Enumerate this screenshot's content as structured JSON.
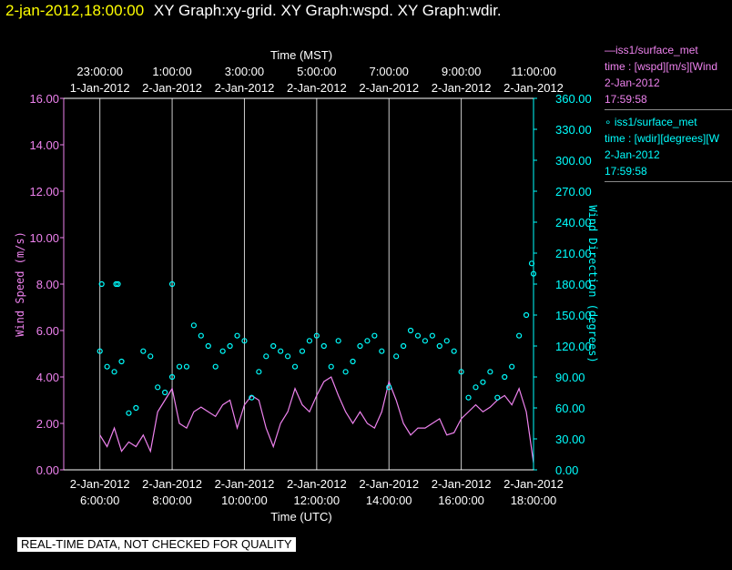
{
  "header": {
    "timestamp": "2-jan-2012,18:00:00",
    "graphs": "XY Graph:xy-grid.  XY Graph:wspd.  XY Graph:wdir."
  },
  "legend": [
    {
      "line1": "—iss1/surface_met",
      "line2": "time : [wspd][m/s][Wind",
      "line3": "2-Jan-2012",
      "line4": "17:59:58",
      "color": "#ee82ee"
    },
    {
      "line1": "∘ iss1/surface_met",
      "line2": "time : [wdir][degrees][W",
      "line3": "2-Jan-2012",
      "line4": "17:59:58",
      "color": "#00ffff"
    }
  ],
  "footer": "REAL-TIME DATA, NOT CHECKED FOR QUALITY",
  "chart_data": {
    "type": "line",
    "top_axis_title": "Time (MST)",
    "bottom_axis_title": "Time (UTC)",
    "ylabel_left": "Wind Speed (m/s)",
    "ylabel_right": "Wind Direction (degrees)",
    "x_range_utc_hours": [
      5.0,
      18.0
    ],
    "ylim_left": [
      0,
      16
    ],
    "ylim_right": [
      0,
      360
    ],
    "grid": true,
    "bottom_ticks": [
      {
        "hour": 6,
        "date": "2-Jan-2012",
        "time": "6:00:00"
      },
      {
        "hour": 8,
        "date": "2-Jan-2012",
        "time": "8:00:00"
      },
      {
        "hour": 10,
        "date": "2-Jan-2012",
        "time": "10:00:00"
      },
      {
        "hour": 12,
        "date": "2-Jan-2012",
        "time": "12:00:00"
      },
      {
        "hour": 14,
        "date": "2-Jan-2012",
        "time": "14:00:00"
      },
      {
        "hour": 16,
        "date": "2-Jan-2012",
        "time": "16:00:00"
      },
      {
        "hour": 18,
        "date": "2-Jan-2012",
        "time": "18:00:00"
      }
    ],
    "top_ticks": [
      {
        "hour": 6,
        "time": "23:00:00",
        "date": "1-Jan-2012"
      },
      {
        "hour": 8,
        "time": "1:00:00",
        "date": "2-Jan-2012"
      },
      {
        "hour": 10,
        "time": "3:00:00",
        "date": "2-Jan-2012"
      },
      {
        "hour": 12,
        "time": "5:00:00",
        "date": "2-Jan-2012"
      },
      {
        "hour": 14,
        "time": "7:00:00",
        "date": "2-Jan-2012"
      },
      {
        "hour": 16,
        "time": "9:00:00",
        "date": "2-Jan-2012"
      },
      {
        "hour": 18,
        "time": "11:00:00",
        "date": "2-Jan-2012"
      }
    ],
    "left_ticks": [
      "0.00",
      "2.00",
      "4.00",
      "6.00",
      "8.00",
      "10.00",
      "12.00",
      "14.00",
      "16.00"
    ],
    "left_tick_values": [
      0,
      2,
      4,
      6,
      8,
      10,
      12,
      14,
      16
    ],
    "right_ticks": [
      "0.00",
      "30.00",
      "60.00",
      "90.00",
      "120.00",
      "150.00",
      "180.00",
      "210.00",
      "240.00",
      "270.00",
      "300.00",
      "330.00",
      "360.00"
    ],
    "right_tick_values": [
      0,
      30,
      60,
      90,
      120,
      150,
      180,
      210,
      240,
      270,
      300,
      330,
      360
    ],
    "series": [
      {
        "name": "iss1/surface_met time : [wspd][m/s]",
        "axis": "left",
        "color": "#ee82ee",
        "x": [
          6.0,
          6.2,
          6.4,
          6.6,
          6.8,
          7.0,
          7.2,
          7.4,
          7.6,
          7.8,
          8.0,
          8.2,
          8.4,
          8.6,
          8.8,
          9.0,
          9.2,
          9.4,
          9.6,
          9.8,
          10.0,
          10.2,
          10.4,
          10.6,
          10.8,
          11.0,
          11.2,
          11.4,
          11.6,
          11.8,
          12.0,
          12.2,
          12.4,
          12.6,
          12.8,
          13.0,
          13.2,
          13.4,
          13.6,
          13.8,
          14.0,
          14.2,
          14.4,
          14.6,
          14.8,
          15.0,
          15.2,
          15.4,
          15.6,
          15.8,
          16.0,
          16.2,
          16.4,
          16.6,
          16.8,
          17.0,
          17.2,
          17.4,
          17.6,
          17.8,
          18.0
        ],
        "y": [
          1.5,
          1.0,
          1.8,
          0.8,
          1.2,
          1.0,
          1.5,
          0.8,
          2.5,
          3.0,
          3.5,
          2.0,
          1.8,
          2.5,
          2.7,
          2.5,
          2.3,
          2.8,
          3.0,
          1.8,
          2.8,
          3.2,
          3.0,
          1.8,
          1.0,
          2.0,
          2.5,
          3.5,
          2.8,
          2.5,
          3.2,
          3.8,
          4.0,
          3.2,
          2.5,
          2.0,
          2.5,
          2.0,
          1.8,
          2.5,
          3.8,
          3.0,
          2.0,
          1.5,
          1.8,
          1.8,
          2.0,
          2.2,
          1.5,
          1.6,
          2.2,
          2.5,
          2.8,
          2.5,
          2.7,
          3.0,
          3.2,
          2.8,
          3.5,
          2.5,
          0.3
        ]
      },
      {
        "name": "iss1/surface_met time : [wdir][degrees]",
        "axis": "right",
        "color": "#00ffff",
        "x": [
          6.0,
          6.2,
          6.4,
          6.6,
          6.8,
          7.0,
          7.2,
          7.4,
          7.6,
          7.8,
          8.0,
          8.2,
          8.4,
          8.6,
          8.8,
          9.0,
          9.2,
          9.4,
          9.6,
          9.8,
          10.0,
          10.2,
          10.4,
          10.6,
          10.8,
          11.0,
          11.2,
          11.4,
          11.6,
          11.8,
          12.0,
          12.2,
          12.4,
          12.6,
          12.8,
          13.0,
          13.2,
          13.4,
          13.6,
          13.8,
          14.0,
          14.2,
          14.4,
          14.6,
          14.8,
          15.0,
          15.2,
          15.4,
          15.6,
          15.8,
          16.0,
          16.2,
          16.4,
          16.6,
          16.8,
          17.0,
          17.2,
          17.4,
          17.6,
          17.8,
          18.0
        ],
        "y": [
          115,
          100,
          95,
          105,
          55,
          60,
          115,
          110,
          80,
          75,
          90,
          100,
          100,
          140,
          130,
          120,
          100,
          115,
          120,
          130,
          125,
          70,
          95,
          110,
          120,
          115,
          110,
          100,
          115,
          125,
          130,
          120,
          100,
          125,
          95,
          105,
          120,
          125,
          130,
          115,
          80,
          110,
          120,
          135,
          130,
          125,
          130,
          120,
          125,
          115,
          95,
          70,
          80,
          85,
          95,
          70,
          90,
          100,
          130,
          150,
          190
        ]
      }
    ],
    "outlier_points": [
      {
        "x": 6.05,
        "y": 180
      },
      {
        "x": 6.45,
        "y": 180
      },
      {
        "x": 6.5,
        "y": 180
      },
      {
        "x": 8.0,
        "y": 180
      },
      {
        "x": 17.95,
        "y": 200
      }
    ]
  }
}
